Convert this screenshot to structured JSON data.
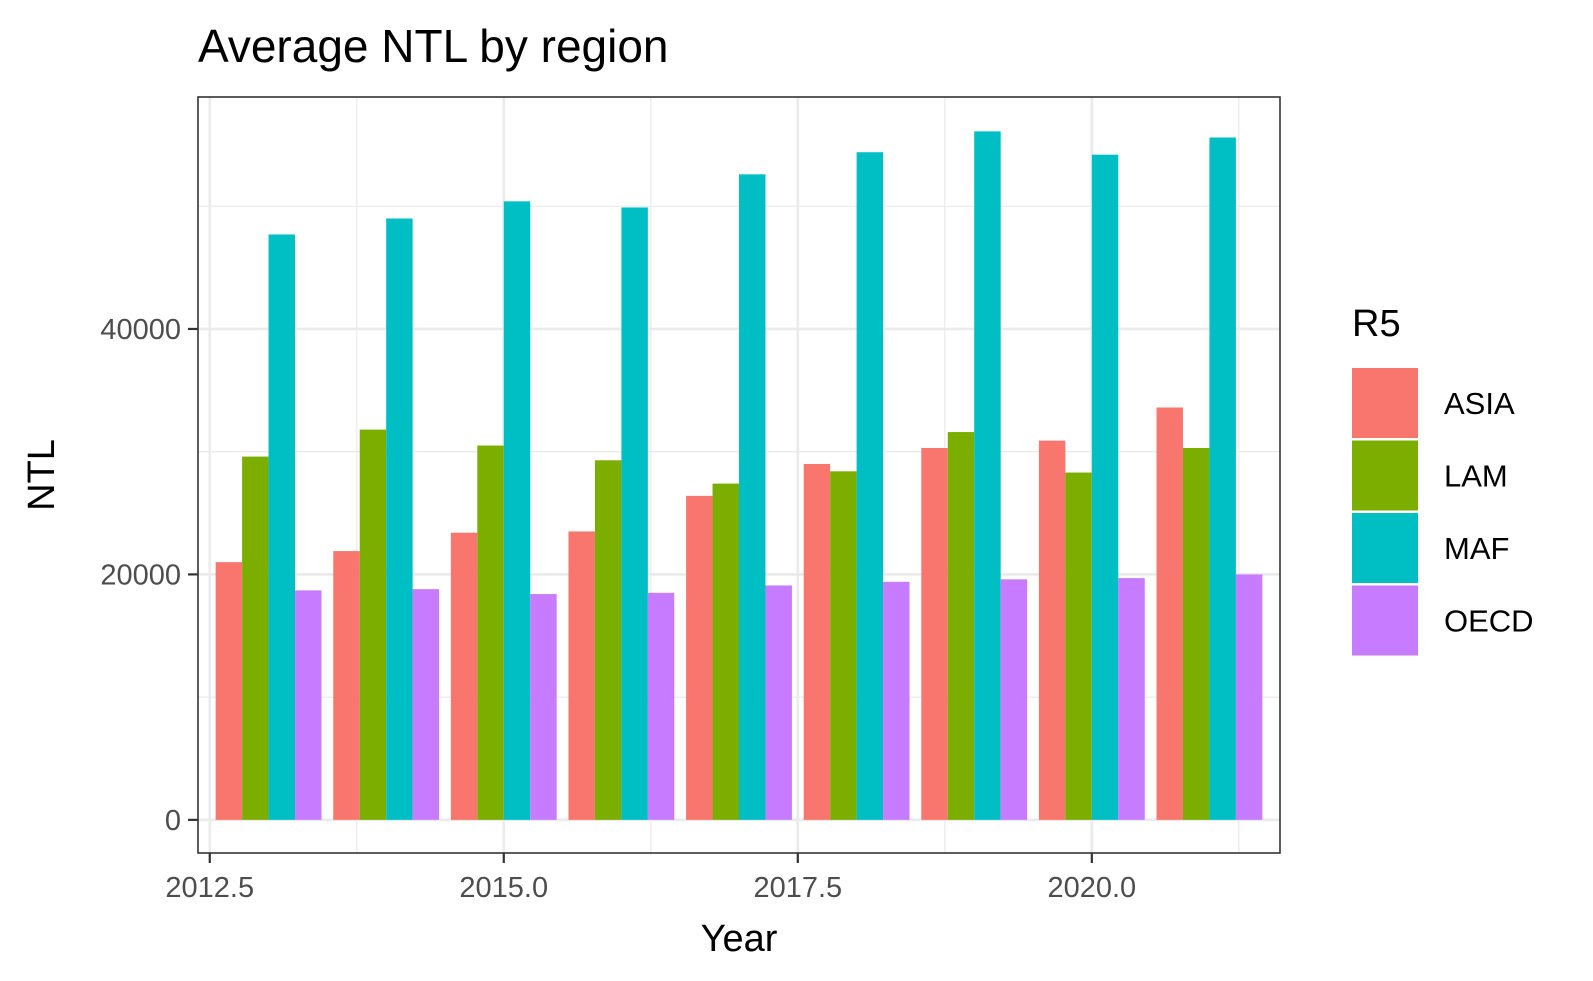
{
  "chart_data": {
    "type": "bar",
    "title": "Average NTL by region",
    "xlabel": "Year",
    "ylabel": "NTL",
    "x": [
      2013,
      2014,
      2015,
      2016,
      2017,
      2018,
      2019,
      2020,
      2021
    ],
    "xlim": [
      2012.4,
      2021.6
    ],
    "ylim": [
      -2700,
      58900
    ],
    "x_ticks": [
      2012.5,
      2015.0,
      2017.5,
      2020.0
    ],
    "x_tick_labels": [
      "2012.5",
      "2015.0",
      "2017.5",
      "2020.0"
    ],
    "y_ticks": [
      0,
      20000,
      40000
    ],
    "y_tick_labels": [
      "0",
      "20000",
      "40000"
    ],
    "grid": true,
    "legend": {
      "title": "R5",
      "position": "right"
    },
    "series": [
      {
        "name": "ASIA",
        "color": "#F8766D",
        "values": [
          21000,
          21900,
          23400,
          23500,
          26400,
          29000,
          30300,
          30900,
          33600
        ]
      },
      {
        "name": "LAM",
        "color": "#7CAE00",
        "values": [
          29600,
          31800,
          30500,
          29300,
          27400,
          28400,
          31600,
          28300,
          30300
        ]
      },
      {
        "name": "MAF",
        "color": "#00BFC4",
        "values": [
          47700,
          49000,
          50400,
          49900,
          52600,
          54400,
          56100,
          54200,
          55600
        ]
      },
      {
        "name": "OECD",
        "color": "#C77CFF",
        "values": [
          18700,
          18800,
          18400,
          18500,
          19100,
          19400,
          19600,
          19700,
          20000
        ]
      }
    ]
  }
}
